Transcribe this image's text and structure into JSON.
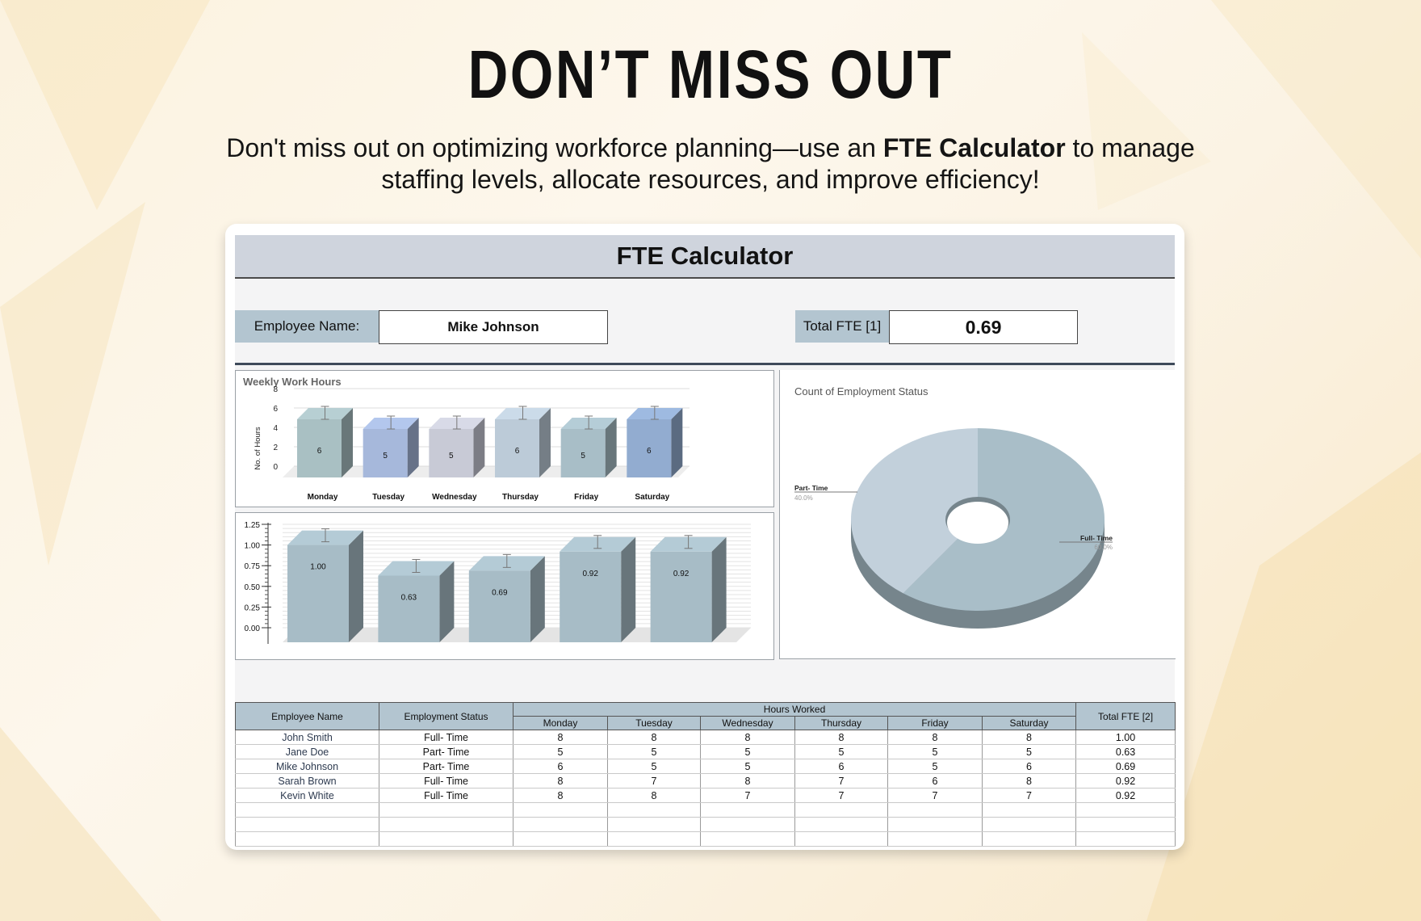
{
  "promo": {
    "headline": "DON’T MISS OUT",
    "subtitle_pre": "Don't miss out on optimizing workforce planning—use an ",
    "subtitle_bold": "FTE Calculator",
    "subtitle_post": " to manage staffing levels, allocate resources, and improve efficiency!"
  },
  "sheet": {
    "title": "FTE Calculator",
    "employee_label": "Employee Name:",
    "employee_value": "Mike Johnson",
    "total_label": "Total FTE [1]",
    "total_value": "0.69"
  },
  "colors": {
    "header_fill": "#cfd4dd",
    "label_fill": "#b3c5d0",
    "bar_fill": "#a7bcc6",
    "pie_fulltime": "#a9bec8",
    "pie_parttime": "#c2d0db"
  },
  "chart_data": [
    {
      "type": "bar",
      "title": "Weekly Work Hours",
      "ylabel": "No. of Hours",
      "ylim": [
        0,
        8
      ],
      "yticks": [
        "0",
        "2",
        "4",
        "6",
        "8"
      ],
      "categories": [
        "Monday",
        "Tuesday",
        "Wednesday",
        "Thursday",
        "Friday",
        "Saturday"
      ],
      "values": [
        6,
        5,
        5,
        6,
        5,
        6
      ],
      "bar_colors": [
        "#a9c0c3",
        "#a6b8db",
        "#c8cad6",
        "#bccbd8",
        "#a8bec7",
        "#92acd0"
      ],
      "error_bars": true,
      "style": "3d"
    },
    {
      "type": "bar",
      "title": "",
      "ylim": [
        0,
        1.25
      ],
      "yticks": [
        "0.00",
        "0.25",
        "0.50",
        "0.75",
        "1.00",
        "1.25"
      ],
      "categories": [
        "John Smith",
        "Jane Doe",
        "Mike Johnson",
        "Sarah Brown",
        "Kevin White"
      ],
      "values": [
        1.0,
        0.63,
        0.69,
        0.92,
        0.92
      ],
      "data_labels": [
        "1.00",
        "0.63",
        "0.69",
        "0.92",
        "0.92"
      ],
      "error_bars": true,
      "style": "3d"
    },
    {
      "type": "pie",
      "title": "Count of Employment Status",
      "donut": true,
      "slices": [
        {
          "label": "Full- Time",
          "pct_label": "60.0%",
          "value": 60
        },
        {
          "label": "Part- Time",
          "pct_label": "40.0%",
          "value": 40
        }
      ]
    }
  ],
  "table": {
    "col_name": "Employee Name",
    "col_status": "Employment Status",
    "col_hours": "Hours Worked",
    "col_total": "Total FTE [2]",
    "days": [
      "Monday",
      "Tuesday",
      "Wednesday",
      "Thursday",
      "Friday",
      "Saturday"
    ],
    "rows": [
      {
        "name": "John Smith",
        "status": "Full- Time",
        "hours": [
          "8",
          "8",
          "8",
          "8",
          "8",
          "8"
        ],
        "fte": "1.00"
      },
      {
        "name": "Jane Doe",
        "status": "Part- Time",
        "hours": [
          "5",
          "5",
          "5",
          "5",
          "5",
          "5"
        ],
        "fte": "0.63"
      },
      {
        "name": "Mike Johnson",
        "status": "Part- Time",
        "hours": [
          "6",
          "5",
          "5",
          "6",
          "5",
          "6"
        ],
        "fte": "0.69"
      },
      {
        "name": "Sarah Brown",
        "status": "Full- Time",
        "hours": [
          "8",
          "7",
          "8",
          "7",
          "6",
          "8"
        ],
        "fte": "0.92"
      },
      {
        "name": "Kevin White",
        "status": "Full- Time",
        "hours": [
          "8",
          "8",
          "7",
          "7",
          "7",
          "7"
        ],
        "fte": "0.92"
      }
    ],
    "empty_rows": 3
  }
}
